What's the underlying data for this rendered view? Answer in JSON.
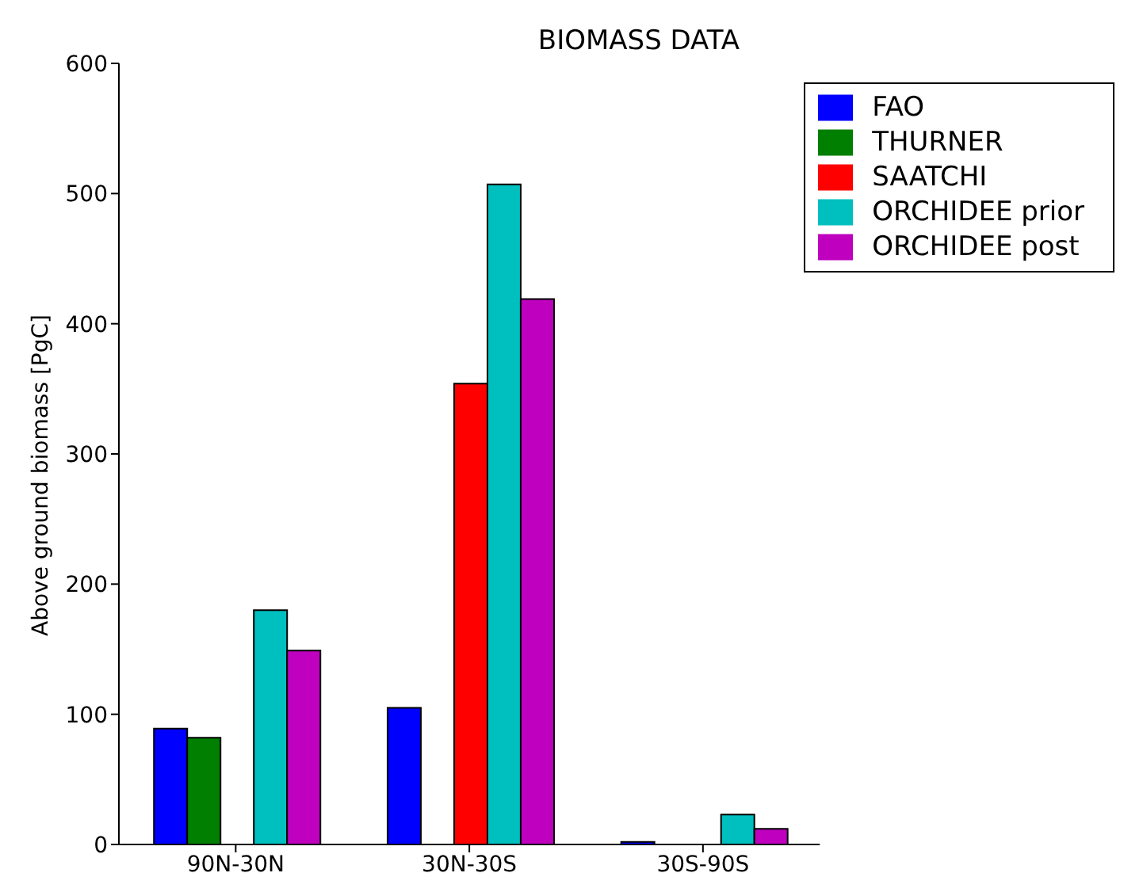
{
  "chart_data": {
    "type": "bar",
    "title": "BIOMASS DATA",
    "ylabel": "Above ground biomass [PgC]",
    "categories": [
      "90N-30N",
      "30N-30S",
      "30S-90S"
    ],
    "series": [
      {
        "name": "FAO",
        "color": "#0000ff",
        "values": [
          89,
          105,
          2
        ]
      },
      {
        "name": "THURNER",
        "color": "#007f00",
        "values": [
          82,
          null,
          null
        ]
      },
      {
        "name": "SAATCHI",
        "color": "#ff0000",
        "values": [
          null,
          354,
          null
        ]
      },
      {
        "name": "ORCHIDEE prior",
        "color": "#00bfbf",
        "values": [
          180,
          507,
          23
        ]
      },
      {
        "name": "ORCHIDEE post",
        "color": "#bf00bf",
        "values": [
          149,
          419,
          12
        ]
      }
    ],
    "ylim": [
      0,
      600
    ],
    "yticks": [
      0,
      100,
      200,
      300,
      400,
      500,
      600
    ],
    "grid": false,
    "legend": "top right"
  }
}
